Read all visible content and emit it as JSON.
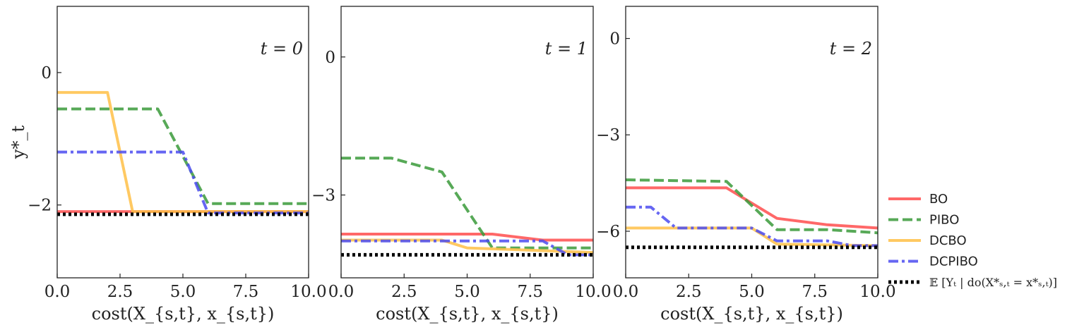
{
  "chart_data": [
    {
      "type": "line",
      "panel_label": "t = 0",
      "xlabel": "cost(X_{s,t}, x_{s,t})",
      "ylabel": "y*_t",
      "xlim": [
        0,
        10
      ],
      "ylim": [
        -3.1,
        1.0
      ],
      "xticks": [
        0,
        2.5,
        5,
        7.5,
        10
      ],
      "xtick_labels": [
        "0.0",
        "2.5",
        "5.0",
        "7.5",
        "10.0"
      ],
      "yticks": [
        0,
        -2
      ],
      "ytick_labels": [
        "0",
        "−2"
      ],
      "series": [
        {
          "name": "BO",
          "x": [
            0,
            10
          ],
          "y": [
            -2.1,
            -2.1
          ]
        },
        {
          "name": "PIBO",
          "x": [
            0,
            4,
            6,
            10
          ],
          "y": [
            -0.55,
            -0.55,
            -1.98,
            -1.98
          ]
        },
        {
          "name": "DCBO",
          "x": [
            0,
            2,
            3,
            10
          ],
          "y": [
            -0.3,
            -0.3,
            -2.1,
            -2.1
          ]
        },
        {
          "name": "DCPIBO",
          "x": [
            0,
            5,
            6,
            10
          ],
          "y": [
            -1.2,
            -1.2,
            -2.12,
            -2.12
          ]
        },
        {
          "name": "𝔼 [Yₜ | do(X*ₛ,ₜ = x*ₛ,ₜ)]",
          "x": [
            0,
            10
          ],
          "y": [
            -2.14,
            -2.14
          ]
        }
      ]
    },
    {
      "type": "line",
      "panel_label": "t = 1",
      "xlabel": "cost(X_{s,t}, x_{s,t})",
      "ylabel": "",
      "xlim": [
        0,
        10
      ],
      "ylim": [
        -4.8,
        1.1
      ],
      "xticks": [
        0,
        2.5,
        5,
        7.5,
        10
      ],
      "xtick_labels": [
        "0.0",
        "2.5",
        "5.0",
        "7.5",
        "10.0"
      ],
      "yticks": [
        0,
        -3
      ],
      "ytick_labels": [
        "0",
        "−3"
      ],
      "series": [
        {
          "name": "BO",
          "x": [
            0,
            6,
            8,
            10
          ],
          "y": [
            -3.85,
            -3.85,
            -3.98,
            -3.98
          ]
        },
        {
          "name": "PIBO",
          "x": [
            0,
            2,
            4,
            6,
            10
          ],
          "y": [
            -2.2,
            -2.2,
            -2.5,
            -4.15,
            -4.15
          ]
        },
        {
          "name": "DCBO",
          "x": [
            0,
            4,
            5,
            10
          ],
          "y": [
            -3.98,
            -3.98,
            -4.15,
            -4.25
          ]
        },
        {
          "name": "DCPIBO",
          "x": [
            0,
            8,
            9,
            10
          ],
          "y": [
            -4.0,
            -4.0,
            -4.3,
            -4.3
          ]
        },
        {
          "name": "𝔼 [Yₜ | do(X*ₛ,ₜ = x*ₛ,ₜ)]",
          "x": [
            0,
            10
          ],
          "y": [
            -4.3,
            -4.3
          ]
        }
      ]
    },
    {
      "type": "line",
      "panel_label": "t = 2",
      "xlabel": "cost(X_{s,t}, x_{s,t})",
      "ylabel": "",
      "xlim": [
        0,
        10
      ],
      "ylim": [
        -7.45,
        1.0
      ],
      "xticks": [
        0,
        2.5,
        5,
        7.5,
        10
      ],
      "xtick_labels": [
        "0.0",
        "2.5",
        "5.0",
        "7.5",
        "10.0"
      ],
      "yticks": [
        0,
        -3,
        -6
      ],
      "ytick_labels": [
        "0",
        "−3",
        "−6"
      ],
      "series": [
        {
          "name": "BO",
          "x": [
            0,
            4,
            6,
            8,
            10
          ],
          "y": [
            -4.65,
            -4.65,
            -5.6,
            -5.8,
            -5.9
          ]
        },
        {
          "name": "PIBO",
          "x": [
            0,
            4,
            6,
            8,
            10
          ],
          "y": [
            -4.4,
            -4.45,
            -5.95,
            -5.95,
            -6.05
          ]
        },
        {
          "name": "DCBO",
          "x": [
            0,
            5,
            6,
            10
          ],
          "y": [
            -5.9,
            -5.9,
            -6.4,
            -6.45
          ]
        },
        {
          "name": "DCPIBO",
          "x": [
            0,
            1,
            2,
            5,
            6,
            8,
            9,
            10
          ],
          "y": [
            -5.25,
            -5.25,
            -5.9,
            -5.9,
            -6.3,
            -6.3,
            -6.45,
            -6.45
          ]
        },
        {
          "name": "𝔼 [Yₜ | do(X*ₛ,ₜ = x*ₛ,ₜ)]",
          "x": [
            0,
            10
          ],
          "y": [
            -6.5,
            -6.5
          ]
        }
      ]
    }
  ],
  "legend": {
    "placement": "right",
    "entries": [
      {
        "label": "BO",
        "color": "#ff4d4d",
        "style": "solid"
      },
      {
        "label": "PIBO",
        "color": "#3a9a3a",
        "style": "dashed"
      },
      {
        "label": "DCBO",
        "color": "#ffbf47",
        "style": "solid"
      },
      {
        "label": "DCPIBO",
        "color": "#4b4bf0",
        "style": "dashdot"
      },
      {
        "label": "𝔼 [Yₜ | do(X*ₛ,ₜ = x*ₛ,ₜ)]",
        "color": "#000000",
        "style": "dotted"
      }
    ]
  }
}
